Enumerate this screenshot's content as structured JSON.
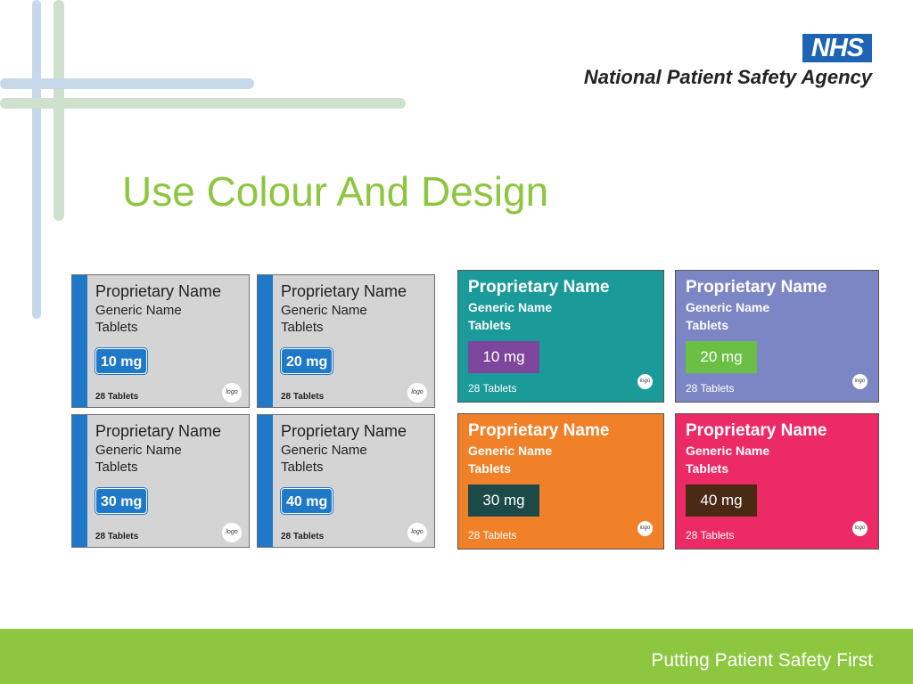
{
  "header": {
    "nhs_logo": "NHS",
    "agency": "National Patient Safety Agency"
  },
  "title": "Use Colour And Design",
  "grey_packs": [
    {
      "proprietary": "Proprietary Name",
      "generic": "Generic Name",
      "form": "Tablets",
      "dose": "10 mg",
      "count": "28 Tablets",
      "logo": "logo"
    },
    {
      "proprietary": "Proprietary Name",
      "generic": "Generic Name",
      "form": "Tablets",
      "dose": "20 mg",
      "count": "28 Tablets",
      "logo": "logo"
    },
    {
      "proprietary": "Proprietary Name",
      "generic": "Generic Name",
      "form": "Tablets",
      "dose": "30 mg",
      "count": "28 Tablets",
      "logo": "logo"
    },
    {
      "proprietary": "Proprietary Name",
      "generic": "Generic Name",
      "form": "Tablets",
      "dose": "40 mg",
      "count": "28 Tablets",
      "logo": "logo"
    }
  ],
  "colour_packs": [
    {
      "proprietary": "Proprietary Name",
      "generic": "Generic Name",
      "form": "Tablets",
      "dose": "10 mg",
      "count": "28 Tablets",
      "logo": "logo",
      "bg": "#1a9a98",
      "dose_bg": "#7d469c"
    },
    {
      "proprietary": "Proprietary Name",
      "generic": "Generic Name",
      "form": "Tablets",
      "dose": "20 mg",
      "count": "28 Tablets",
      "logo": "logo",
      "bg": "#7d86c4",
      "dose_bg": "#6cbf45"
    },
    {
      "proprietary": "Proprietary Name",
      "generic": "Generic Name",
      "form": "Tablets",
      "dose": "30 mg",
      "count": "28 Tablets",
      "logo": "logo",
      "bg": "#f18129",
      "dose_bg": "#1c4a48"
    },
    {
      "proprietary": "Proprietary Name",
      "generic": "Generic Name",
      "form": "Tablets",
      "dose": "40 mg",
      "count": "28 Tablets",
      "logo": "logo",
      "bg": "#ec2a66",
      "dose_bg": "#4a2a14"
    }
  ],
  "footer": {
    "tagline": "Putting Patient Safety First"
  },
  "colors": {
    "accent_green": "#8dc63f",
    "nhs_blue": "#1e64b4",
    "grey_pack_blue": "#1f78c8"
  }
}
